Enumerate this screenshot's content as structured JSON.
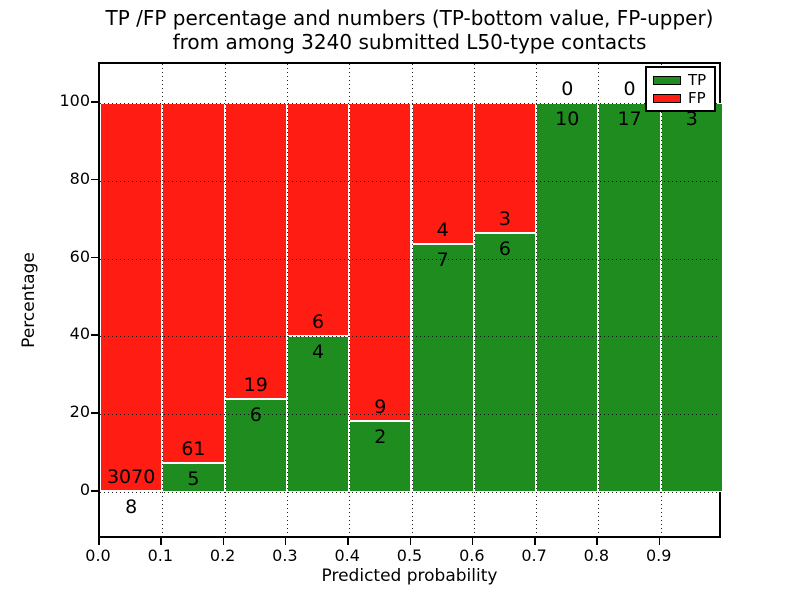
{
  "title": {
    "line1": "TP /FP percentage and numbers (TP-bottom value, FP-upper)",
    "line2": "from among 3240 submitted L50-type contacts"
  },
  "axes": {
    "xlabel": "Predicted probability",
    "ylabel": "Percentage",
    "x_ticks": [
      "0.0",
      "0.1",
      "0.2",
      "0.3",
      "0.4",
      "0.5",
      "0.6",
      "0.7",
      "0.8",
      "0.9"
    ],
    "y_ticks": [
      "0",
      "20",
      "40",
      "60",
      "80",
      "100"
    ]
  },
  "legend": {
    "position": "upper right",
    "items": [
      {
        "label": "TP",
        "color": "#1f8c1f"
      },
      {
        "label": "FP",
        "color": "#fe1c13"
      }
    ]
  },
  "colors": {
    "tp": "#1f8c1f",
    "fp": "#fe1c13",
    "grid": "#000000",
    "background": "#ffffff",
    "bar_edge": "#ffffff"
  },
  "chart_data": {
    "type": "bar",
    "stacked": true,
    "title": "TP /FP percentage and numbers (TP-bottom value, FP-upper) from among 3240 submitted L50-type contacts",
    "xlabel": "Predicted probability",
    "ylabel": "Percentage",
    "total_contacts": 3240,
    "categories": [
      "0.0-0.1",
      "0.1-0.2",
      "0.2-0.3",
      "0.3-0.4",
      "0.4-0.5",
      "0.5-0.6",
      "0.6-0.7",
      "0.7-0.8",
      "0.8-0.9",
      "0.9-1.0"
    ],
    "series": [
      {
        "name": "TP",
        "color": "#1f8c1f",
        "counts": [
          8,
          5,
          6,
          4,
          2,
          7,
          6,
          10,
          17,
          3
        ],
        "pct": [
          0.26,
          7.58,
          24.0,
          40.0,
          18.18,
          63.64,
          66.67,
          100.0,
          100.0,
          100.0
        ]
      },
      {
        "name": "FP",
        "color": "#fe1c13",
        "counts": [
          3070,
          61,
          19,
          6,
          9,
          4,
          3,
          0,
          0,
          0
        ],
        "pct": [
          99.74,
          92.42,
          76.0,
          60.0,
          81.82,
          36.36,
          33.33,
          0.0,
          0.0,
          0.0
        ]
      }
    ],
    "xlim": [
      0.0,
      1.0
    ],
    "ylim": [
      -12,
      110
    ],
    "y_tick_values": [
      0,
      20,
      40,
      60,
      80,
      100
    ],
    "grid": "dotted",
    "legend_position": "upper right"
  }
}
